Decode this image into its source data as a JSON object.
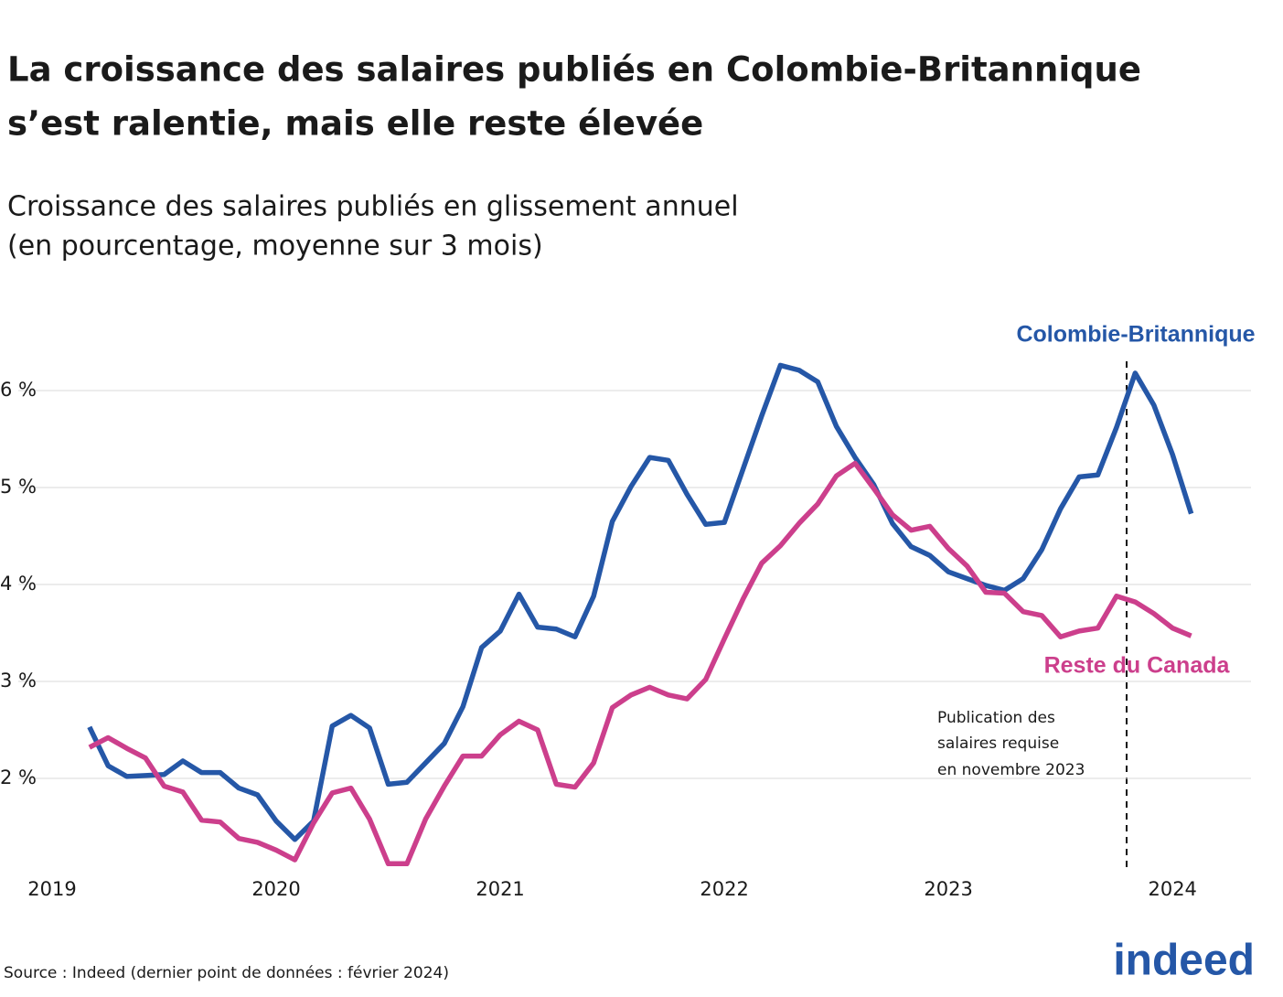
{
  "chart_data": {
    "type": "line",
    "title": [
      "La croissance des salaires publiés en Colombie-Britannique",
      "s’est ralentie, mais elle reste élevée"
    ],
    "subtitle": [
      "Croissance des salaires publiés en glissement annuel",
      "(en pourcentage, moyenne sur 3 mois)"
    ],
    "categories": [
      "2019",
      null,
      null,
      null,
      null,
      null,
      null,
      null,
      null,
      null,
      null,
      null,
      "2020",
      null,
      null,
      null,
      null,
      null,
      null,
      null,
      null,
      null,
      null,
      null,
      "2021",
      null,
      null,
      null,
      null,
      null,
      null,
      null,
      null,
      null,
      null,
      null,
      "2022",
      null,
      null,
      null,
      null,
      null,
      null,
      null,
      null,
      null,
      null,
      null,
      "2023",
      null,
      null,
      null,
      null,
      null,
      null,
      null,
      null,
      null,
      null,
      null,
      "2024",
      null
    ],
    "series": [
      {
        "name": "Colombie-Britannique",
        "color": "#2557a7",
        "values": [
          null,
          null,
          2.53,
          2.13,
          2.02,
          2.03,
          2.04,
          2.18,
          2.06,
          2.06,
          1.9,
          1.83,
          1.56,
          1.37,
          1.56,
          2.54,
          2.65,
          2.52,
          1.94,
          1.96,
          2.16,
          2.36,
          2.74,
          3.35,
          3.52,
          3.9,
          3.56,
          3.54,
          3.46,
          3.88,
          4.65,
          5.01,
          5.31,
          5.28,
          4.93,
          4.62,
          4.64,
          5.19,
          5.74,
          6.26,
          6.21,
          6.09,
          5.63,
          5.31,
          5.03,
          4.63,
          4.39,
          4.3,
          4.13,
          4.06,
          3.99,
          3.94,
          4.06,
          4.36,
          4.78,
          5.11,
          5.13,
          5.62,
          6.18,
          5.85,
          5.34,
          4.73
        ]
      },
      {
        "name": "Reste du Canada",
        "color": "#cc3f8c",
        "values": [
          null,
          null,
          2.32,
          2.42,
          2.31,
          2.21,
          1.92,
          1.86,
          1.57,
          1.55,
          1.38,
          1.34,
          1.26,
          1.16,
          1.54,
          1.85,
          1.9,
          1.58,
          1.12,
          1.12,
          1.58,
          1.92,
          2.23,
          2.23,
          2.45,
          2.59,
          2.5,
          1.94,
          1.91,
          2.16,
          2.73,
          2.86,
          2.94,
          2.86,
          2.82,
          3.02,
          3.44,
          3.85,
          4.22,
          4.4,
          4.63,
          4.83,
          5.12,
          5.25,
          4.99,
          4.72,
          4.56,
          4.6,
          4.37,
          4.19,
          3.92,
          3.91,
          3.72,
          3.68,
          3.46,
          3.52,
          3.55,
          3.88,
          3.82,
          3.7,
          3.55,
          3.47
        ]
      }
    ],
    "ylim": [
      1.05,
      6.4
    ],
    "yticks": [
      {
        "value": 2,
        "label": "2 %"
      },
      {
        "value": 3,
        "label": "3 %"
      },
      {
        "value": 4,
        "label": "4 %"
      },
      {
        "value": 5,
        "label": "5 %"
      },
      {
        "value": 6,
        "label": "6 %"
      }
    ],
    "grid": true,
    "annotation": [
      "Publication des",
      "salaires requise",
      "en novembre 2023"
    ],
    "source": "Source : Indeed (dernier point de données : février 2024)",
    "logo": "indeed"
  }
}
